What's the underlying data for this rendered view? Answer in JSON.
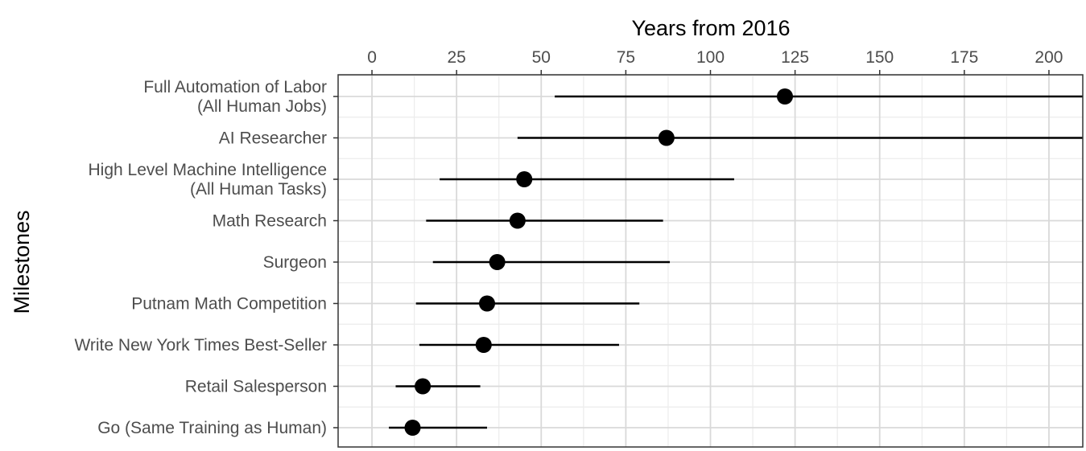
{
  "chart_data": {
    "type": "dot-interval",
    "xlabel": "Years from 2016",
    "ylabel": "Milestones",
    "xlim": [
      -10,
      210
    ],
    "xticks": [
      0,
      25,
      50,
      75,
      100,
      125,
      150,
      175,
      200
    ],
    "grid": true,
    "legend": "none",
    "categories": [
      {
        "label": [
          "Full Automation of Labor",
          "(All Human Jobs)"
        ],
        "median": 122,
        "low": 54,
        "high": 210
      },
      {
        "label": [
          "AI Researcher"
        ],
        "median": 87,
        "low": 43,
        "high": 210
      },
      {
        "label": [
          "High Level Machine Intelligence",
          "(All Human Tasks)"
        ],
        "median": 45,
        "low": 20,
        "high": 107
      },
      {
        "label": [
          "Math Research"
        ],
        "median": 43,
        "low": 16,
        "high": 86
      },
      {
        "label": [
          "Surgeon"
        ],
        "median": 37,
        "low": 18,
        "high": 88
      },
      {
        "label": [
          "Putnam Math Competition"
        ],
        "median": 34,
        "low": 13,
        "high": 79
      },
      {
        "label": [
          "Write New York Times Best-Seller"
        ],
        "median": 33,
        "low": 14,
        "high": 73
      },
      {
        "label": [
          "Retail Salesperson"
        ],
        "median": 15,
        "low": 7,
        "high": 32
      },
      {
        "label": [
          "Go (Same Training as Human)"
        ],
        "median": 12,
        "low": 5,
        "high": 34
      }
    ],
    "colors": {
      "mark": "#000000",
      "grid_major": "#d9d9d9",
      "grid_minor": "#ececec",
      "panel_border": "#333333",
      "text": "#4d4d4d"
    }
  }
}
